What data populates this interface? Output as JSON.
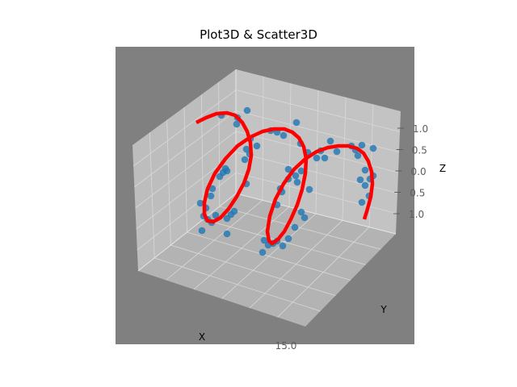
{
  "title": "Plot3D & Scatter3D",
  "colors": {
    "axes_background": "#808080",
    "pane_floor": "#b3b3b3",
    "pane_left": "#bdbdbd",
    "pane_back": "#c3c3c3",
    "grid": "#d9d9d9",
    "line": "#ff0000",
    "scatter": "#1f77b4"
  },
  "chart_data": {
    "type": "scatter",
    "projection": "3d",
    "title": "Plot3D & Scatter3D",
    "xlabel": "X",
    "ylabel": "Y",
    "zlabel": "Z",
    "x_tick_labels": [
      "15.0"
    ],
    "z_tick_labels": [
      "1.0",
      "0.5",
      "0.0",
      "0.5",
      "1.0"
    ],
    "zlim": [
      -1.2,
      1.2
    ],
    "grid": true,
    "legend": "none",
    "series": [
      {
        "type": "line",
        "color": "#ff0000",
        "description": "helix curve z = sin(x)",
        "points": [
          [
            243,
            152
          ],
          [
            255,
            146
          ],
          [
            268,
            141
          ],
          [
            281,
            140
          ],
          [
            291,
            143
          ],
          [
            300,
            152
          ],
          [
            306,
            163
          ],
          [
            310,
            177
          ],
          [
            311,
            193
          ],
          [
            308,
            210
          ],
          [
            302,
            227
          ],
          [
            293,
            244
          ],
          [
            283,
            259
          ],
          [
            273,
            270
          ],
          [
            264,
            275
          ],
          [
            257,
            274
          ],
          [
            253,
            266
          ],
          [
            253,
            251
          ],
          [
            257,
            234
          ],
          [
            266,
            215
          ],
          [
            279,
            197
          ],
          [
            294,
            181
          ],
          [
            310,
            170
          ],
          [
            325,
            163
          ],
          [
            339,
            160
          ],
          [
            352,
            160
          ],
          [
            362,
            164
          ],
          [
            370,
            171
          ],
          [
            376,
            182
          ],
          [
            379,
            197
          ],
          [
            378,
            215
          ],
          [
            374,
            235
          ],
          [
            368,
            254
          ],
          [
            360,
            272
          ],
          [
            352,
            287
          ],
          [
            344,
            297
          ],
          [
            337,
            302
          ],
          [
            333,
            299
          ],
          [
            331,
            287
          ],
          [
            334,
            268
          ],
          [
            341,
            247
          ],
          [
            351,
            228
          ],
          [
            364,
            210
          ],
          [
            378,
            197
          ],
          [
            392,
            188
          ],
          [
            406,
            183
          ],
          [
            419,
            181
          ],
          [
            431,
            181
          ],
          [
            442,
            184
          ],
          [
            450,
            190
          ],
          [
            456,
            200
          ],
          [
            460,
            213
          ],
          [
            461,
            228
          ],
          [
            459,
            244
          ],
          [
            455,
            259
          ],
          [
            451,
            272
          ]
        ]
      },
      {
        "type": "scatter",
        "color": "#1f77b4",
        "description": "noisy samples around the helix",
        "points": [
          [
            306,
            137
          ],
          [
            274,
            143
          ],
          [
            294,
            146
          ],
          [
            367,
            152
          ],
          [
            293,
            154
          ],
          [
            335,
            162
          ],
          [
            343,
            164
          ],
          [
            351,
            168
          ],
          [
            310,
            172
          ],
          [
            409,
            175
          ],
          [
            372,
            178
          ],
          [
            318,
            181
          ],
          [
            435,
            181
          ],
          [
            448,
            180
          ],
          [
            462,
            184
          ],
          [
            305,
            185
          ],
          [
            397,
            187
          ],
          [
            381,
            189
          ],
          [
            440,
            186
          ],
          [
            309,
            191
          ],
          [
            417,
            188
          ],
          [
            443,
            193
          ],
          [
            392,
            196
          ],
          [
            303,
            198
          ],
          [
            402,
            196
          ],
          [
            279,
            209
          ],
          [
            276,
            214
          ],
          [
            272,
            219
          ],
          [
            281,
            212
          ],
          [
            357,
            210
          ],
          [
            373,
            212
          ],
          [
            452,
            211
          ],
          [
            462,
            218
          ],
          [
            446,
            223
          ],
          [
            366,
            218
          ],
          [
            357,
            222
          ],
          [
            368,
            226
          ],
          [
            458,
            222
          ],
          [
            263,
            234
          ],
          [
            305,
            228
          ],
          [
            347,
            234
          ],
          [
            383,
            235
          ],
          [
            452,
            230
          ],
          [
            261,
            243
          ],
          [
            349,
            238
          ],
          [
            457,
            243
          ],
          [
            248,
            252
          ],
          [
            290,
            262
          ],
          [
            343,
            254
          ],
          [
            448,
            251
          ],
          [
            255,
            258
          ],
          [
            286,
            266
          ],
          [
            373,
            263
          ],
          [
            267,
            267
          ],
          [
            252,
            268
          ],
          [
            281,
            271
          ],
          [
            257,
            272
          ],
          [
            262,
            276
          ],
          [
            377,
            270
          ],
          [
            365,
            282
          ],
          [
            250,
            286
          ],
          [
            281,
            290
          ],
          [
            357,
            296
          ],
          [
            327,
            298
          ],
          [
            343,
            299
          ],
          [
            338,
            302
          ],
          [
            350,
            305
          ],
          [
            332,
            304
          ],
          [
            325,
            313
          ]
        ]
      }
    ]
  }
}
